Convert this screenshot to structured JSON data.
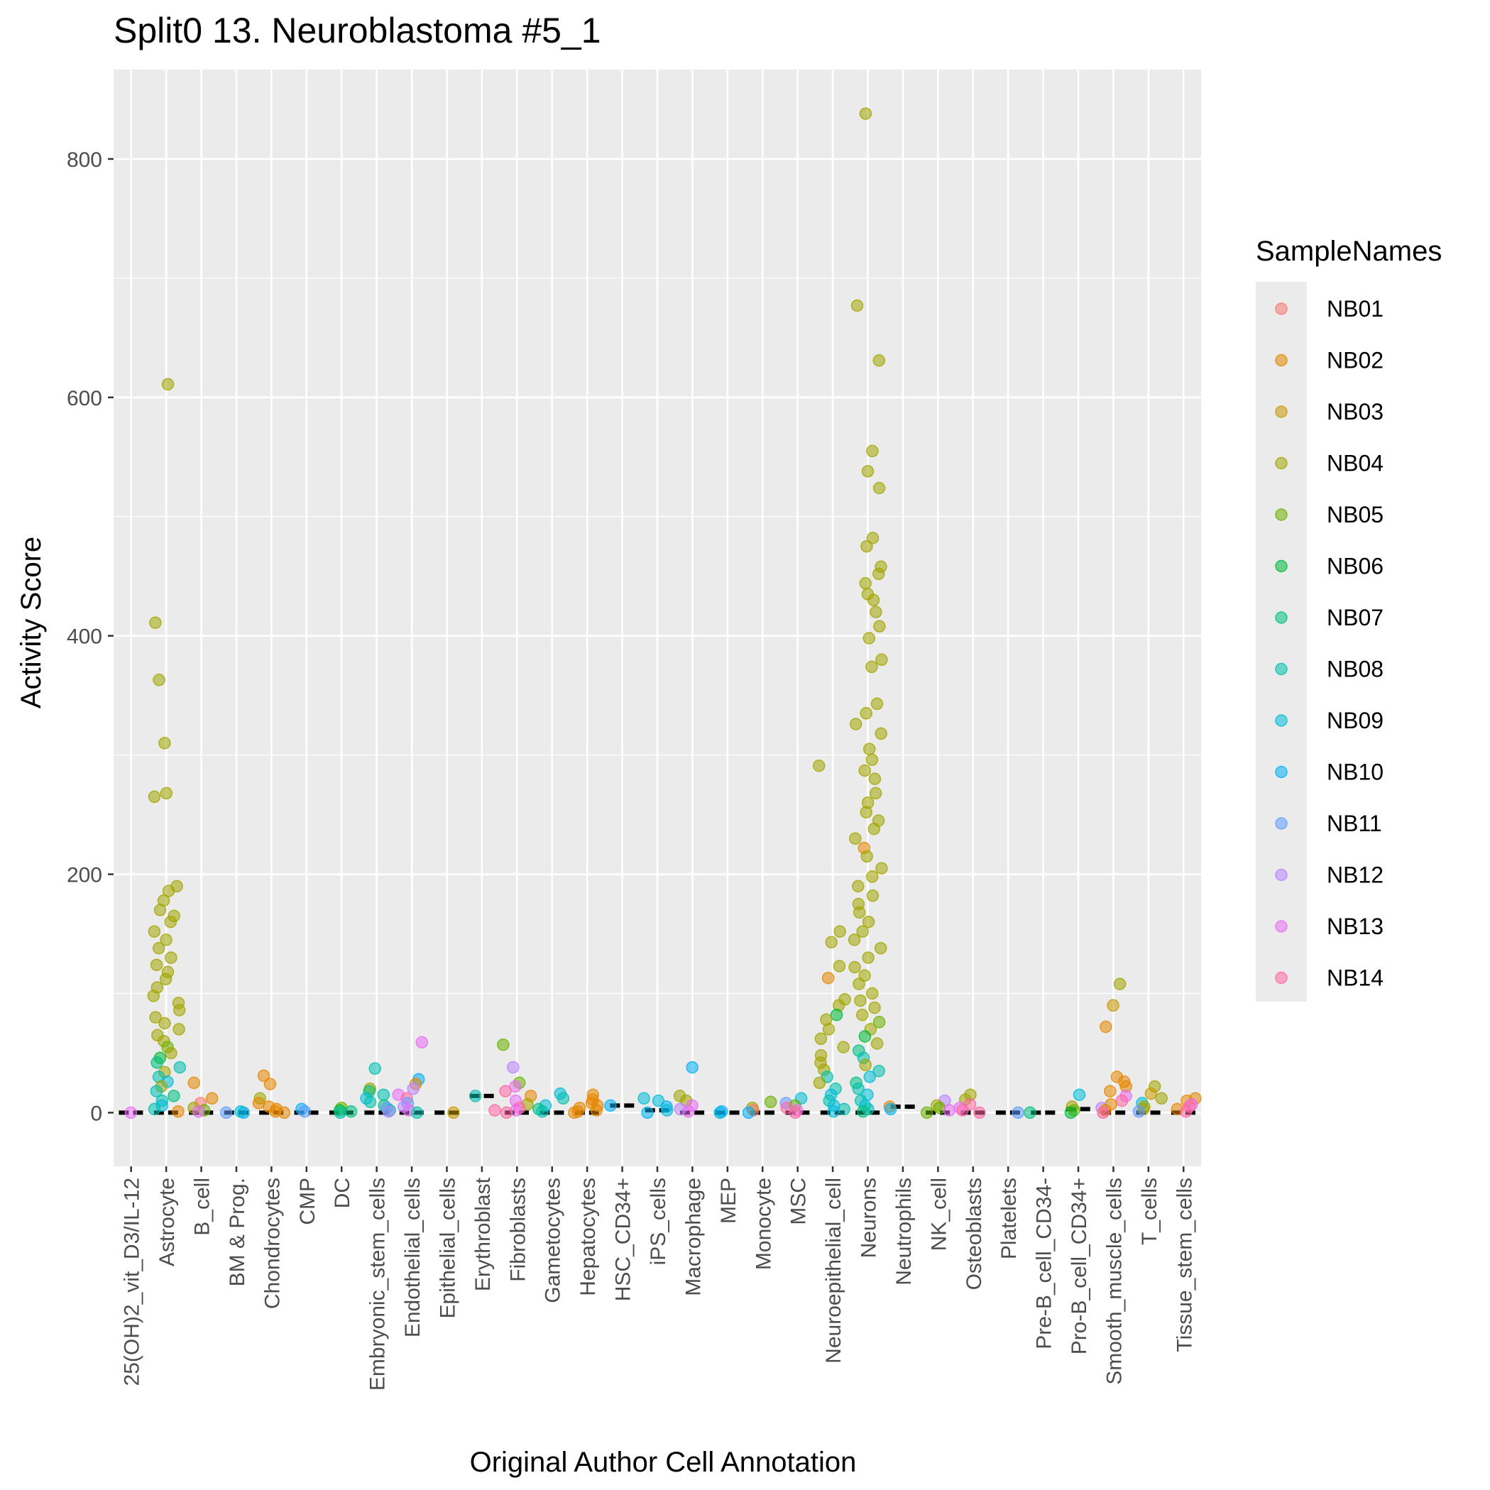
{
  "chart_data": {
    "type": "scatter",
    "title": "Split0 13. Neuroblastoma #5_1",
    "xlabel": "Original Author Cell Annotation",
    "ylabel": "Activity Score",
    "ylim": [
      -45,
      875
    ],
    "yticks": [
      0,
      200,
      400,
      600,
      800
    ],
    "grid": true,
    "legend_position": "right",
    "legend_title": "SampleNames",
    "categories": [
      "25(OH)2_vit_D3/IL-12",
      "Astrocyte",
      "B_cell",
      "BM & Prog.",
      "Chondrocytes",
      "CMP",
      "DC",
      "Embryonic_stem_cells",
      "Endothelial_cells",
      "Epithelial_cells",
      "Erythroblast",
      "Fibroblasts",
      "Gametocytes",
      "Hepatocytes",
      "HSC_CD34+",
      "iPS_cells",
      "Macrophage",
      "MEP",
      "Monocyte",
      "MSC",
      "Neuroepithelial_cell",
      "Neurons",
      "Neutrophils",
      "NK_cell",
      "Osteoblasts",
      "Platelets",
      "Pre-B_cell_CD34-",
      "Pro-B_cell_CD34+",
      "Smooth_muscle_cells",
      "T_cells",
      "Tissue_stem_cells"
    ],
    "series": [
      {
        "name": "NB01",
        "color": "#F8766D"
      },
      {
        "name": "NB02",
        "color": "#E58700"
      },
      {
        "name": "NB03",
        "color": "#C99800"
      },
      {
        "name": "NB04",
        "color": "#A3A500"
      },
      {
        "name": "NB05",
        "color": "#6BB100"
      },
      {
        "name": "NB06",
        "color": "#00BA38"
      },
      {
        "name": "NB07",
        "color": "#00BF7D"
      },
      {
        "name": "NB08",
        "color": "#00C0AF"
      },
      {
        "name": "NB09",
        "color": "#00BCD8"
      },
      {
        "name": "NB10",
        "color": "#00B0F6"
      },
      {
        "name": "NB11",
        "color": "#619CFF"
      },
      {
        "name": "NB12",
        "color": "#B983FF"
      },
      {
        "name": "NB13",
        "color": "#E76BF3"
      },
      {
        "name": "NB14",
        "color": "#FF67A4"
      }
    ],
    "medians": [
      0,
      0,
      0,
      0,
      0,
      0,
      0,
      0,
      0,
      0,
      14,
      0,
      0,
      0,
      6,
      2,
      0,
      0,
      0,
      0,
      0,
      0,
      5,
      0,
      0,
      0,
      0,
      3,
      0,
      0,
      0
    ],
    "points": [
      [
        0,
        0,
        "NB13"
      ],
      [
        1,
        611,
        "NB04"
      ],
      [
        1,
        411,
        "NB04"
      ],
      [
        1,
        363,
        "NB04"
      ],
      [
        1,
        310,
        "NB04"
      ],
      [
        1,
        268,
        "NB04"
      ],
      [
        1,
        265,
        "NB04"
      ],
      [
        1,
        190,
        "NB04"
      ],
      [
        1,
        186,
        "NB04"
      ],
      [
        1,
        178,
        "NB04"
      ],
      [
        1,
        170,
        "NB04"
      ],
      [
        1,
        165,
        "NB04"
      ],
      [
        1,
        160,
        "NB04"
      ],
      [
        1,
        152,
        "NB04"
      ],
      [
        1,
        145,
        "NB04"
      ],
      [
        1,
        138,
        "NB04"
      ],
      [
        1,
        130,
        "NB04"
      ],
      [
        1,
        124,
        "NB04"
      ],
      [
        1,
        118,
        "NB04"
      ],
      [
        1,
        112,
        "NB04"
      ],
      [
        1,
        105,
        "NB04"
      ],
      [
        1,
        98,
        "NB04"
      ],
      [
        1,
        92,
        "NB04"
      ],
      [
        1,
        86,
        "NB04"
      ],
      [
        1,
        80,
        "NB04"
      ],
      [
        1,
        75,
        "NB04"
      ],
      [
        1,
        70,
        "NB04"
      ],
      [
        1,
        65,
        "NB04"
      ],
      [
        1,
        60,
        "NB04"
      ],
      [
        1,
        55,
        "NB05"
      ],
      [
        1,
        50,
        "NB04"
      ],
      [
        1,
        46,
        "NB06"
      ],
      [
        1,
        42,
        "NB07"
      ],
      [
        1,
        38,
        "NB08"
      ],
      [
        1,
        34,
        "NB04"
      ],
      [
        1,
        30,
        "NB08"
      ],
      [
        1,
        26,
        "NB09"
      ],
      [
        1,
        22,
        "NB04"
      ],
      [
        1,
        18,
        "NB08"
      ],
      [
        1,
        14,
        "NB07"
      ],
      [
        1,
        10,
        "NB08"
      ],
      [
        1,
        6,
        "NB09"
      ],
      [
        1,
        3,
        "NB08"
      ],
      [
        1,
        1,
        "NB02"
      ],
      [
        2,
        25,
        "NB02"
      ],
      [
        2,
        12,
        "NB02"
      ],
      [
        2,
        8,
        "NB01"
      ],
      [
        2,
        4,
        "NB04"
      ],
      [
        2,
        2,
        "NB05"
      ],
      [
        2,
        1,
        "NB13"
      ],
      [
        3,
        0,
        "NB10"
      ],
      [
        3,
        1,
        "NB09"
      ],
      [
        3,
        0,
        "NB11"
      ],
      [
        4,
        31,
        "NB02"
      ],
      [
        4,
        24,
        "NB02"
      ],
      [
        4,
        12,
        "NB04"
      ],
      [
        4,
        8,
        "NB02"
      ],
      [
        4,
        5,
        "NB02"
      ],
      [
        4,
        3,
        "NB02"
      ],
      [
        4,
        1,
        "NB02"
      ],
      [
        4,
        0,
        "NB02"
      ],
      [
        5,
        3,
        "NB10"
      ],
      [
        5,
        1,
        "NB11"
      ],
      [
        6,
        4,
        "NB05"
      ],
      [
        6,
        2,
        "NB06"
      ],
      [
        6,
        1,
        "NB07"
      ],
      [
        6,
        0,
        "NB08"
      ],
      [
        7,
        37,
        "NB08"
      ],
      [
        7,
        20,
        "NB04"
      ],
      [
        7,
        18,
        "NB07"
      ],
      [
        7,
        15,
        "NB08"
      ],
      [
        7,
        12,
        "NB09"
      ],
      [
        7,
        9,
        "NB08"
      ],
      [
        7,
        6,
        "NB07"
      ],
      [
        7,
        4,
        "NB11"
      ],
      [
        7,
        2,
        "NB08"
      ],
      [
        7,
        1,
        "NB12"
      ],
      [
        8,
        59,
        "NB13"
      ],
      [
        8,
        28,
        "NB10"
      ],
      [
        8,
        24,
        "NB02"
      ],
      [
        8,
        20,
        "NB12"
      ],
      [
        8,
        15,
        "NB13"
      ],
      [
        8,
        12,
        "NB14"
      ],
      [
        8,
        8,
        "NB11"
      ],
      [
        8,
        5,
        "NB12"
      ],
      [
        8,
        2,
        "NB13"
      ],
      [
        8,
        0,
        "NB08"
      ],
      [
        9,
        0,
        "NB03"
      ],
      [
        10,
        14,
        "NB08"
      ],
      [
        10,
        2,
        "NB14"
      ],
      [
        11,
        57,
        "NB05"
      ],
      [
        11,
        38,
        "NB12"
      ],
      [
        11,
        25,
        "NB05"
      ],
      [
        11,
        22,
        "NB13"
      ],
      [
        11,
        18,
        "NB14"
      ],
      [
        11,
        14,
        "NB02"
      ],
      [
        11,
        10,
        "NB13"
      ],
      [
        11,
        7,
        "NB04"
      ],
      [
        11,
        4,
        "NB14"
      ],
      [
        11,
        2,
        "NB13"
      ],
      [
        11,
        0,
        "NB14"
      ],
      [
        12,
        16,
        "NB09"
      ],
      [
        12,
        12,
        "NB08"
      ],
      [
        12,
        6,
        "NB09"
      ],
      [
        12,
        3,
        "NB07"
      ],
      [
        12,
        1,
        "NB08"
      ],
      [
        13,
        15,
        "NB02"
      ],
      [
        13,
        11,
        "NB02"
      ],
      [
        13,
        8,
        "NB02"
      ],
      [
        13,
        6,
        "NB02"
      ],
      [
        13,
        4,
        "NB02"
      ],
      [
        13,
        2,
        "NB02"
      ],
      [
        13,
        1,
        "NB02"
      ],
      [
        13,
        0,
        "NB02"
      ],
      [
        14,
        6,
        "NB10"
      ],
      [
        15,
        12,
        "NB09"
      ],
      [
        15,
        10,
        "NB09"
      ],
      [
        15,
        5,
        "NB10"
      ],
      [
        15,
        2,
        "NB09"
      ],
      [
        15,
        0,
        "NB10"
      ],
      [
        16,
        38,
        "NB10"
      ],
      [
        16,
        14,
        "NB04"
      ],
      [
        16,
        10,
        "NB04"
      ],
      [
        16,
        6,
        "NB13"
      ],
      [
        16,
        3,
        "NB12"
      ],
      [
        16,
        1,
        "NB13"
      ],
      [
        17,
        0,
        "NB09"
      ],
      [
        17,
        1,
        "NB10"
      ],
      [
        18,
        9,
        "NB05"
      ],
      [
        18,
        4,
        "NB04"
      ],
      [
        18,
        2,
        "NB01"
      ],
      [
        18,
        0,
        "NB10"
      ],
      [
        19,
        12,
        "NB09"
      ],
      [
        19,
        8,
        "NB11"
      ],
      [
        19,
        6,
        "NB05"
      ],
      [
        19,
        4,
        "NB14"
      ],
      [
        19,
        2,
        "NB13"
      ],
      [
        19,
        0,
        "NB14"
      ],
      [
        20,
        291,
        "NB04"
      ],
      [
        20,
        152,
        "NB04"
      ],
      [
        20,
        143,
        "NB04"
      ],
      [
        20,
        123,
        "NB04"
      ],
      [
        20,
        113,
        "NB02"
      ],
      [
        20,
        95,
        "NB04"
      ],
      [
        20,
        90,
        "NB04"
      ],
      [
        20,
        82,
        "NB06"
      ],
      [
        20,
        78,
        "NB04"
      ],
      [
        20,
        70,
        "NB04"
      ],
      [
        20,
        62,
        "NB04"
      ],
      [
        20,
        55,
        "NB04"
      ],
      [
        20,
        48,
        "NB04"
      ],
      [
        20,
        42,
        "NB04"
      ],
      [
        20,
        36,
        "NB04"
      ],
      [
        20,
        30,
        "NB08"
      ],
      [
        20,
        25,
        "NB04"
      ],
      [
        20,
        20,
        "NB08"
      ],
      [
        20,
        15,
        "NB09"
      ],
      [
        20,
        10,
        "NB08"
      ],
      [
        20,
        6,
        "NB09"
      ],
      [
        20,
        3,
        "NB08"
      ],
      [
        20,
        1,
        "NB09"
      ],
      [
        21,
        838,
        "NB04"
      ],
      [
        21,
        677,
        "NB04"
      ],
      [
        21,
        631,
        "NB04"
      ],
      [
        21,
        555,
        "NB04"
      ],
      [
        21,
        538,
        "NB04"
      ],
      [
        21,
        524,
        "NB04"
      ],
      [
        21,
        482,
        "NB04"
      ],
      [
        21,
        475,
        "NB04"
      ],
      [
        21,
        458,
        "NB04"
      ],
      [
        21,
        452,
        "NB04"
      ],
      [
        21,
        444,
        "NB04"
      ],
      [
        21,
        435,
        "NB04"
      ],
      [
        21,
        430,
        "NB04"
      ],
      [
        21,
        420,
        "NB04"
      ],
      [
        21,
        408,
        "NB04"
      ],
      [
        21,
        398,
        "NB04"
      ],
      [
        21,
        380,
        "NB04"
      ],
      [
        21,
        374,
        "NB04"
      ],
      [
        21,
        343,
        "NB04"
      ],
      [
        21,
        335,
        "NB04"
      ],
      [
        21,
        326,
        "NB04"
      ],
      [
        21,
        318,
        "NB04"
      ],
      [
        21,
        305,
        "NB04"
      ],
      [
        21,
        296,
        "NB04"
      ],
      [
        21,
        287,
        "NB04"
      ],
      [
        21,
        280,
        "NB04"
      ],
      [
        21,
        268,
        "NB04"
      ],
      [
        21,
        260,
        "NB04"
      ],
      [
        21,
        252,
        "NB04"
      ],
      [
        21,
        245,
        "NB04"
      ],
      [
        21,
        238,
        "NB04"
      ],
      [
        21,
        230,
        "NB04"
      ],
      [
        21,
        222,
        "NB02"
      ],
      [
        21,
        215,
        "NB04"
      ],
      [
        21,
        205,
        "NB04"
      ],
      [
        21,
        198,
        "NB04"
      ],
      [
        21,
        190,
        "NB04"
      ],
      [
        21,
        182,
        "NB04"
      ],
      [
        21,
        175,
        "NB04"
      ],
      [
        21,
        168,
        "NB04"
      ],
      [
        21,
        160,
        "NB04"
      ],
      [
        21,
        152,
        "NB04"
      ],
      [
        21,
        145,
        "NB04"
      ],
      [
        21,
        138,
        "NB04"
      ],
      [
        21,
        130,
        "NB04"
      ],
      [
        21,
        122,
        "NB04"
      ],
      [
        21,
        115,
        "NB04"
      ],
      [
        21,
        108,
        "NB04"
      ],
      [
        21,
        100,
        "NB04"
      ],
      [
        21,
        94,
        "NB04"
      ],
      [
        21,
        88,
        "NB04"
      ],
      [
        21,
        82,
        "NB04"
      ],
      [
        21,
        76,
        "NB05"
      ],
      [
        21,
        70,
        "NB04"
      ],
      [
        21,
        64,
        "NB06"
      ],
      [
        21,
        58,
        "NB04"
      ],
      [
        21,
        52,
        "NB07"
      ],
      [
        21,
        46,
        "NB08"
      ],
      [
        21,
        40,
        "NB04"
      ],
      [
        21,
        35,
        "NB08"
      ],
      [
        21,
        30,
        "NB09"
      ],
      [
        21,
        25,
        "NB07"
      ],
      [
        21,
        20,
        "NB08"
      ],
      [
        21,
        15,
        "NB09"
      ],
      [
        21,
        10,
        "NB08"
      ],
      [
        21,
        6,
        "NB09"
      ],
      [
        21,
        3,
        "NB08"
      ],
      [
        21,
        1,
        "NB07"
      ],
      [
        22,
        5,
        "NB02"
      ],
      [
        22,
        3,
        "NB10"
      ],
      [
        23,
        10,
        "NB12"
      ],
      [
        23,
        6,
        "NB04"
      ],
      [
        23,
        4,
        "NB05"
      ],
      [
        23,
        2,
        "NB13"
      ],
      [
        23,
        0,
        "NB05"
      ],
      [
        24,
        15,
        "NB04"
      ],
      [
        24,
        11,
        "NB04"
      ],
      [
        24,
        7,
        "NB14"
      ],
      [
        24,
        4,
        "NB13"
      ],
      [
        24,
        2,
        "NB14"
      ],
      [
        24,
        0,
        "NB14"
      ],
      [
        25,
        0,
        "NB11"
      ],
      [
        26,
        0,
        "NB07"
      ],
      [
        27,
        15,
        "NB09"
      ],
      [
        27,
        5,
        "NB04"
      ],
      [
        27,
        2,
        "NB05"
      ],
      [
        27,
        0,
        "NB06"
      ],
      [
        28,
        108,
        "NB04"
      ],
      [
        28,
        90,
        "NB03"
      ],
      [
        28,
        72,
        "NB02"
      ],
      [
        28,
        30,
        "NB02"
      ],
      [
        28,
        26,
        "NB02"
      ],
      [
        28,
        22,
        "NB02"
      ],
      [
        28,
        18,
        "NB02"
      ],
      [
        28,
        14,
        "NB13"
      ],
      [
        28,
        10,
        "NB14"
      ],
      [
        28,
        7,
        "NB02"
      ],
      [
        28,
        4,
        "NB12"
      ],
      [
        28,
        2,
        "NB02"
      ],
      [
        28,
        0,
        "NB14"
      ],
      [
        29,
        22,
        "NB04"
      ],
      [
        29,
        16,
        "NB03"
      ],
      [
        29,
        12,
        "NB04"
      ],
      [
        29,
        8,
        "NB09"
      ],
      [
        29,
        5,
        "NB04"
      ],
      [
        29,
        3,
        "NB04"
      ],
      [
        29,
        1,
        "NB11"
      ],
      [
        30,
        12,
        "NB02"
      ],
      [
        30,
        10,
        "NB02"
      ],
      [
        30,
        7,
        "NB13"
      ],
      [
        30,
        5,
        "NB14"
      ],
      [
        30,
        3,
        "NB02"
      ],
      [
        30,
        1,
        "NB14"
      ]
    ]
  }
}
